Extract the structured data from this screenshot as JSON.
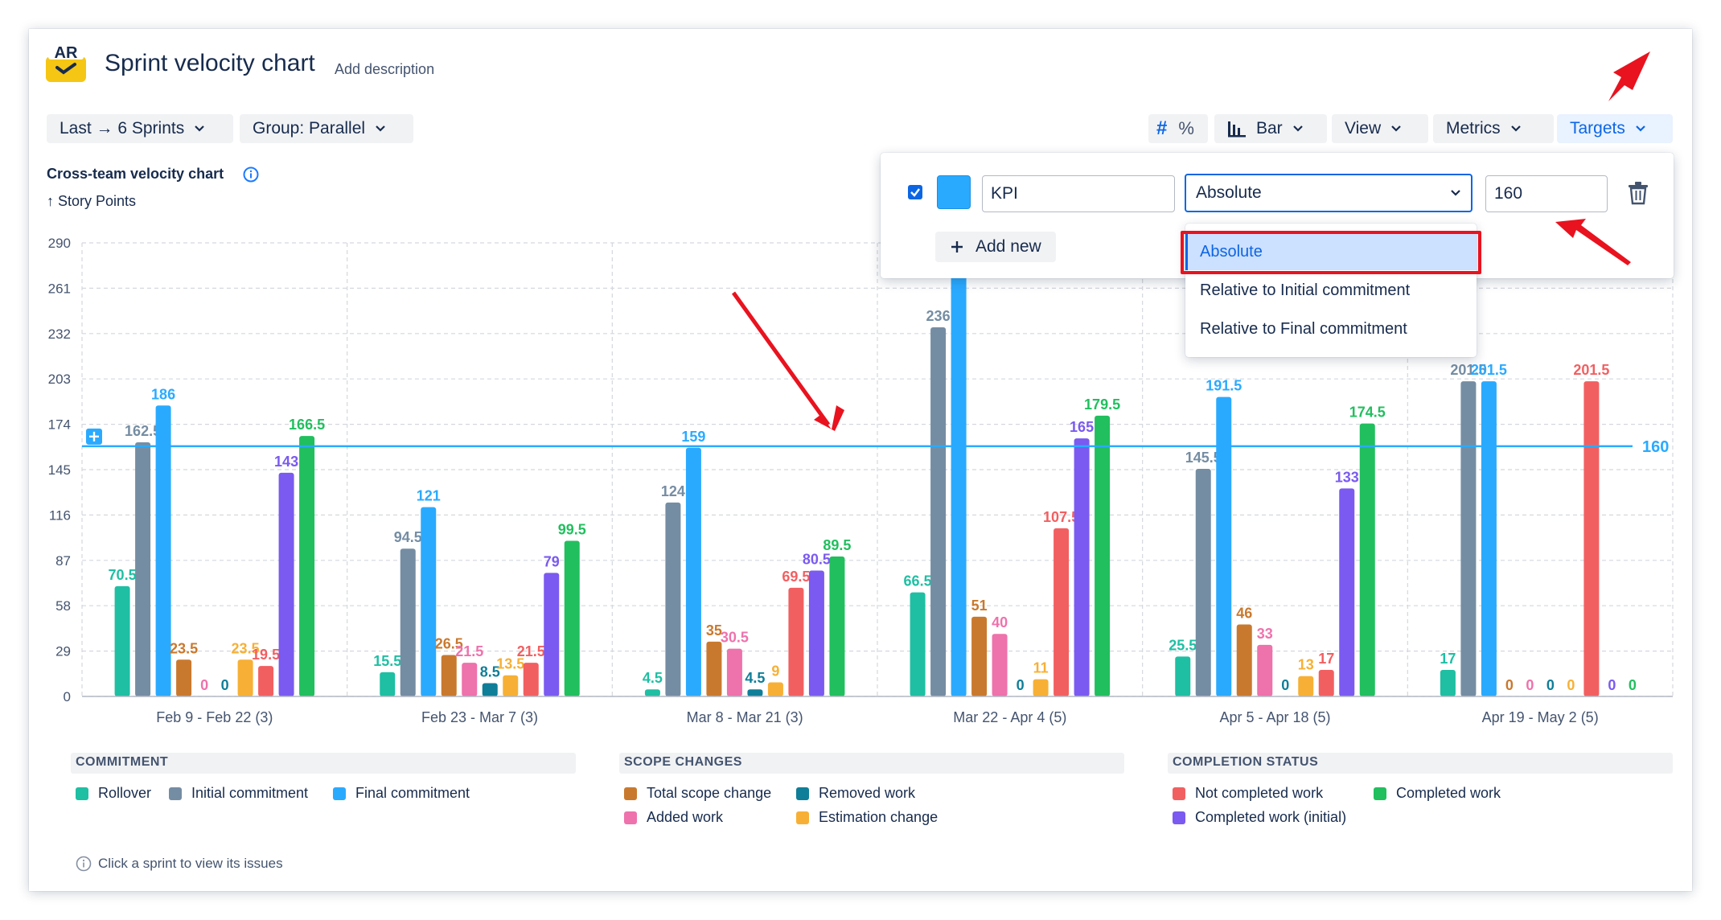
{
  "header": {
    "title": "Sprint velocity chart",
    "add_description": "Add description",
    "logo_text": "AR"
  },
  "toolbar": {
    "range_label": "Last → 6 Sprints",
    "group_label": "Group: Parallel",
    "hash_symbol": "#",
    "percent_symbol": "%",
    "bar_label": "Bar",
    "view_label": "View",
    "metrics_label": "Metrics",
    "targets_label": "Targets"
  },
  "chart_heading": {
    "title": "Cross-team velocity chart",
    "y_axis_label": "↑ Story Points"
  },
  "targets_panel": {
    "enabled": true,
    "color": "#2aaaff",
    "name_value": "KPI",
    "mode_selected": "Absolute",
    "target_value": "160",
    "add_new_label": "Add new",
    "options": [
      "Absolute",
      "Relative to Initial commitment",
      "Relative to Final commitment"
    ]
  },
  "chart_data": {
    "type": "bar",
    "title": "Cross-team velocity chart",
    "ylabel": "Story Points",
    "ylim": [
      0,
      290
    ],
    "yticks": [
      0,
      29,
      58,
      87,
      116,
      145,
      174,
      203,
      232,
      261,
      290
    ],
    "grid": true,
    "target_line": {
      "value": 160,
      "label": "160",
      "color": "#2aaaff"
    },
    "categories": [
      "Feb 9 - Feb 22 (3)",
      "Feb 23 - Mar 7 (3)",
      "Mar 8 - Mar 21 (3)",
      "Mar 22 - Apr 4 (5)",
      "Apr 5 - Apr 18 (5)",
      "Apr 19 - May 2 (5)"
    ],
    "series": [
      {
        "name": "Rollover",
        "group": "commitment",
        "color": "#1fbfa3",
        "values": [
          70.5,
          15.5,
          4.5,
          66.5,
          25.5,
          17
        ]
      },
      {
        "name": "Initial commitment",
        "group": "commitment",
        "color": "#758da3",
        "values": [
          162.5,
          94.5,
          124,
          236,
          145.5,
          201.5
        ]
      },
      {
        "name": "Final commitment",
        "group": "commitment",
        "color": "#2aaaff",
        "values": [
          186,
          121,
          159,
          270,
          191.5,
          201.5
        ]
      },
      {
        "name": "Total scope change",
        "group": "scope",
        "color": "#c9792e",
        "values": [
          23.5,
          26.5,
          35,
          51,
          46,
          0
        ]
      },
      {
        "name": "Added work",
        "group": "scope",
        "color": "#ee72ac",
        "values": [
          0,
          21.5,
          30.5,
          40,
          33,
          0
        ]
      },
      {
        "name": "Removed work",
        "group": "scope",
        "color": "#0f7e98",
        "values": [
          0,
          8.5,
          4.5,
          0,
          0,
          0
        ]
      },
      {
        "name": "Estimation change",
        "group": "scope",
        "color": "#f7b035",
        "values": [
          23.5,
          13.5,
          9,
          11,
          13,
          0
        ]
      },
      {
        "name": "Not completed work",
        "group": "completion",
        "color": "#f25f61",
        "values": [
          19.5,
          21.5,
          69.5,
          107.5,
          17,
          201.5
        ]
      },
      {
        "name": "Completed work (initial)",
        "group": "completion",
        "color": "#7a5af0",
        "values": [
          143,
          79,
          80.5,
          165,
          133,
          0
        ]
      },
      {
        "name": "Completed work",
        "group": "completion",
        "color": "#21bf5e",
        "values": [
          166.5,
          99.5,
          89.5,
          179.5,
          174.5,
          0
        ]
      }
    ],
    "data_labels": [
      [
        "70.5",
        "162.5",
        "186",
        "23.5",
        "0",
        "0",
        "23.5",
        "19.5",
        "143",
        "166.5"
      ],
      [
        "15.5",
        "94.5",
        "121",
        "26.5",
        "21.5",
        "8.5",
        "13.5",
        "21.5",
        "79",
        "99.5"
      ],
      [
        "4.5",
        "124",
        "159",
        "35",
        "30.5",
        "4.5",
        "9",
        "69.5",
        "80.5",
        "89.5"
      ],
      [
        "66.5",
        "236",
        "",
        "51",
        "40",
        "0",
        "11",
        "107.5",
        "165",
        "179.5"
      ],
      [
        "25.5",
        "145.5",
        "191.5",
        "46",
        "33",
        "0",
        "13",
        "17",
        "133",
        "174.5"
      ],
      [
        "17",
        "201.5",
        "201.5",
        "0",
        "0",
        "0",
        "0",
        "201.5",
        "0",
        "0"
      ]
    ]
  },
  "legend": {
    "commitment_header": "COMMITMENT",
    "scope_header": "SCOPE CHANGES",
    "completion_header": "COMPLETION STATUS",
    "rollover": "Rollover",
    "initial_commitment": "Initial commitment",
    "final_commitment": "Final commitment",
    "total_scope_change": "Total scope change",
    "removed_work": "Removed work",
    "added_work": "Added work",
    "estimation_change": "Estimation change",
    "not_completed_work": "Not completed work",
    "completed_work": "Completed work",
    "completed_work_initial": "Completed work (initial)"
  },
  "footer": {
    "note": "Click a sprint to view its issues"
  }
}
